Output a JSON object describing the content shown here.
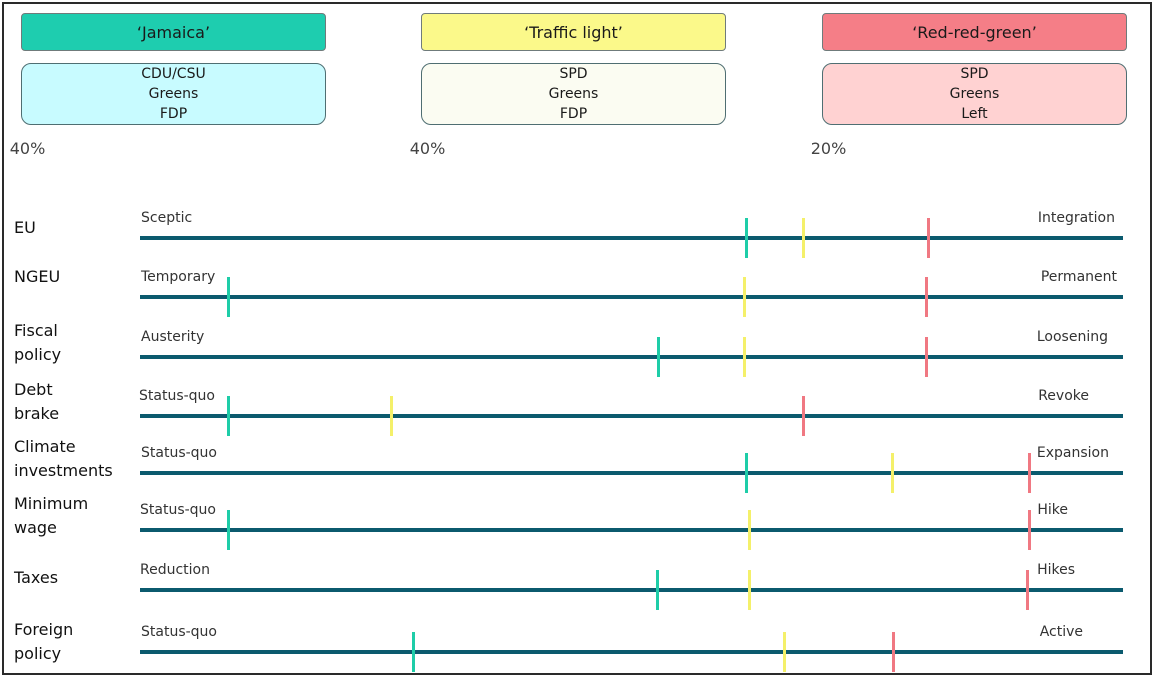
{
  "coalitions": [
    {
      "name": "‘Jamaica’",
      "parties": [
        "CDU/CSU",
        "Greens",
        "FDP"
      ],
      "share": "40%",
      "header_color": "#1ecdaf",
      "box_color": "#c8fbff",
      "marker_color": "#1ecda8"
    },
    {
      "name": "‘Traffic light’",
      "parties": [
        "SPD",
        "Greens",
        "FDP"
      ],
      "share": "40%",
      "header_color": "#fbf98a",
      "box_color": "#fbfcf2",
      "marker_color": "#f4f06a"
    },
    {
      "name": "‘Red-red-green’",
      "parties": [
        "SPD",
        "Greens",
        "Left"
      ],
      "share": "20%",
      "header_color": "#f57e87",
      "box_color": "#ffd2d2",
      "marker_color": "#f07882"
    }
  ],
  "chart_data": {
    "type": "scatter",
    "scale": [
      0,
      1
    ],
    "series_order": [
      "‘Jamaica’",
      "‘Traffic light’",
      "‘Red-red-green’"
    ],
    "rows": [
      {
        "label": "EU",
        "low": "Sceptic",
        "high": "Integration",
        "values": [
          0.617,
          0.675,
          0.802
        ]
      },
      {
        "label": "NGEU",
        "low": "Temporary",
        "high": "Permanent",
        "values": [
          0.09,
          0.615,
          0.8
        ]
      },
      {
        "label": "Fiscal\npolicy",
        "low": "Austerity",
        "high": "Loosening",
        "values": [
          0.527,
          0.615,
          0.8
        ]
      },
      {
        "label": "Debt\nbrake",
        "low": "Status-quo",
        "high": "Revoke",
        "values": [
          0.09,
          0.256,
          0.675
        ]
      },
      {
        "label": "Climate\ninvestments",
        "low": "Status-quo",
        "high": "Expansion",
        "values": [
          0.617,
          0.766,
          0.905
        ]
      },
      {
        "label": "Minimum\nwage",
        "low": "Status-quo",
        "high": "Hike",
        "values": [
          0.09,
          0.62,
          0.905
        ]
      },
      {
        "label": "Taxes",
        "low": "Reduction",
        "high": "Hikes",
        "values": [
          0.526,
          0.62,
          0.903
        ]
      },
      {
        "label": "Foreign\npolicy",
        "low": "Status-quo",
        "high": "Active",
        "values": [
          0.278,
          0.656,
          0.767
        ]
      }
    ]
  }
}
